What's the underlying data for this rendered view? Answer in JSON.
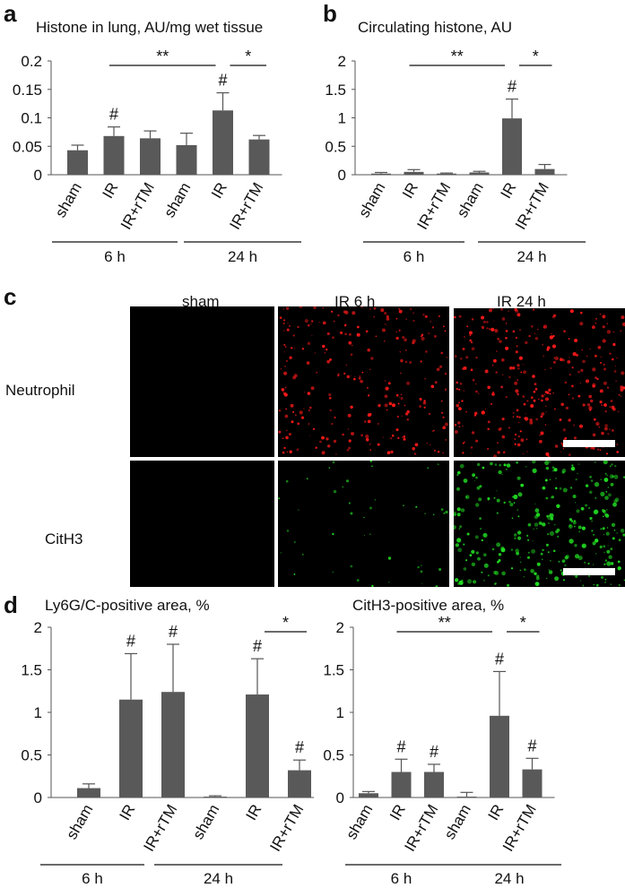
{
  "panels": {
    "a": {
      "letter": "a"
    },
    "b": {
      "letter": "b"
    },
    "c": {
      "letter": "c",
      "columns": [
        "sham",
        "IR 6 h",
        "IR 24 h"
      ],
      "rows": [
        "Neutrophil",
        "CitH3"
      ],
      "colors": {
        "neutrophil": "#ff1a1a",
        "cith3": "#22dd22"
      }
    },
    "d": {
      "letter": "d"
    }
  },
  "chart_data": [
    {
      "id": "a",
      "type": "bar",
      "title": "Histone in lung, AU/mg wet tissue",
      "categories": [
        "sham",
        "IR",
        "IR+rTM",
        "sham",
        "IR",
        "IR+rTM"
      ],
      "values": [
        0.043,
        0.068,
        0.064,
        0.052,
        0.113,
        0.062
      ],
      "errors": [
        0.009,
        0.016,
        0.013,
        0.021,
        0.031,
        0.007
      ],
      "ylim": [
        0,
        0.2
      ],
      "yticks": [
        "0",
        "0.05",
        "0.1",
        "0.15",
        "0.2"
      ],
      "ytick_values": [
        0,
        0.05,
        0.1,
        0.15,
        0.2
      ],
      "groups": [
        {
          "label": "6 h",
          "from": 0,
          "to": 2
        },
        {
          "label": "24 h",
          "from": 3,
          "to": 5
        }
      ],
      "hash_marks": [
        1,
        4
      ],
      "significance": [
        {
          "from": 1,
          "to": 4,
          "label": "**"
        },
        {
          "from": 4,
          "to": 5,
          "label": "*"
        }
      ],
      "bar_color": "#595959"
    },
    {
      "id": "b",
      "type": "bar",
      "title": "Circulating histone, AU",
      "categories": [
        "sham",
        "IR",
        "IR+rTM",
        "sham",
        "IR",
        "IR+rTM"
      ],
      "values": [
        0.02,
        0.05,
        0.02,
        0.04,
        0.99,
        0.1
      ],
      "errors": [
        0.02,
        0.04,
        0.01,
        0.02,
        0.34,
        0.08
      ],
      "ylim": [
        0,
        2
      ],
      "yticks": [
        "0",
        "0.5",
        "1",
        "1.5",
        "2"
      ],
      "ytick_values": [
        0,
        0.5,
        1,
        1.5,
        2
      ],
      "groups": [
        {
          "label": "6 h",
          "from": 0,
          "to": 2
        },
        {
          "label": "24 h",
          "from": 3,
          "to": 5
        }
      ],
      "hash_marks": [
        4
      ],
      "significance": [
        {
          "from": 1,
          "to": 4,
          "label": "**"
        },
        {
          "from": 4,
          "to": 5,
          "label": "*"
        }
      ],
      "bar_color": "#595959"
    },
    {
      "id": "d1",
      "type": "bar",
      "title": "Ly6G/C-positive area, %",
      "categories": [
        "sham",
        "IR",
        "IR+rTM",
        "sham",
        "IR",
        "IR+rTM"
      ],
      "values": [
        0.11,
        1.15,
        1.24,
        0.01,
        1.21,
        0.32
      ],
      "errors": [
        0.05,
        0.54,
        0.56,
        0.01,
        0.42,
        0.12
      ],
      "ylim": [
        0,
        2
      ],
      "yticks": [
        "0",
        "0.5",
        "1",
        "1.5",
        "2"
      ],
      "ytick_values": [
        0,
        0.5,
        1,
        1.5,
        2
      ],
      "groups": [
        {
          "label": "6 h",
          "from": 0,
          "to": 2
        },
        {
          "label": "24 h",
          "from": 3,
          "to": 5
        }
      ],
      "hash_marks": [
        1,
        2,
        4,
        5
      ],
      "significance": [
        {
          "from": 4,
          "to": 5,
          "label": "*"
        }
      ],
      "bar_color": "#595959"
    },
    {
      "id": "d2",
      "type": "bar",
      "title": "CitH3-positive area, %",
      "categories": [
        "sham",
        "IR",
        "IR+rTM",
        "sham",
        "IR",
        "IR+rTM"
      ],
      "values": [
        0.05,
        0.3,
        0.3,
        0.01,
        0.96,
        0.33
      ],
      "errors": [
        0.02,
        0.15,
        0.09,
        0.05,
        0.52,
        0.13
      ],
      "ylim": [
        0,
        2
      ],
      "yticks": [
        "0",
        "0.5",
        "1",
        "1.5",
        "2"
      ],
      "ytick_values": [
        0,
        0.5,
        1,
        1.5,
        2
      ],
      "groups": [
        {
          "label": "6 h",
          "from": 0,
          "to": 2
        },
        {
          "label": "24 h",
          "from": 3,
          "to": 5
        }
      ],
      "hash_marks": [
        1,
        2,
        4,
        5
      ],
      "significance": [
        {
          "from": 1,
          "to": 4,
          "label": "**"
        },
        {
          "from": 4,
          "to": 5,
          "label": "*"
        }
      ],
      "bar_color": "#595959"
    }
  ]
}
